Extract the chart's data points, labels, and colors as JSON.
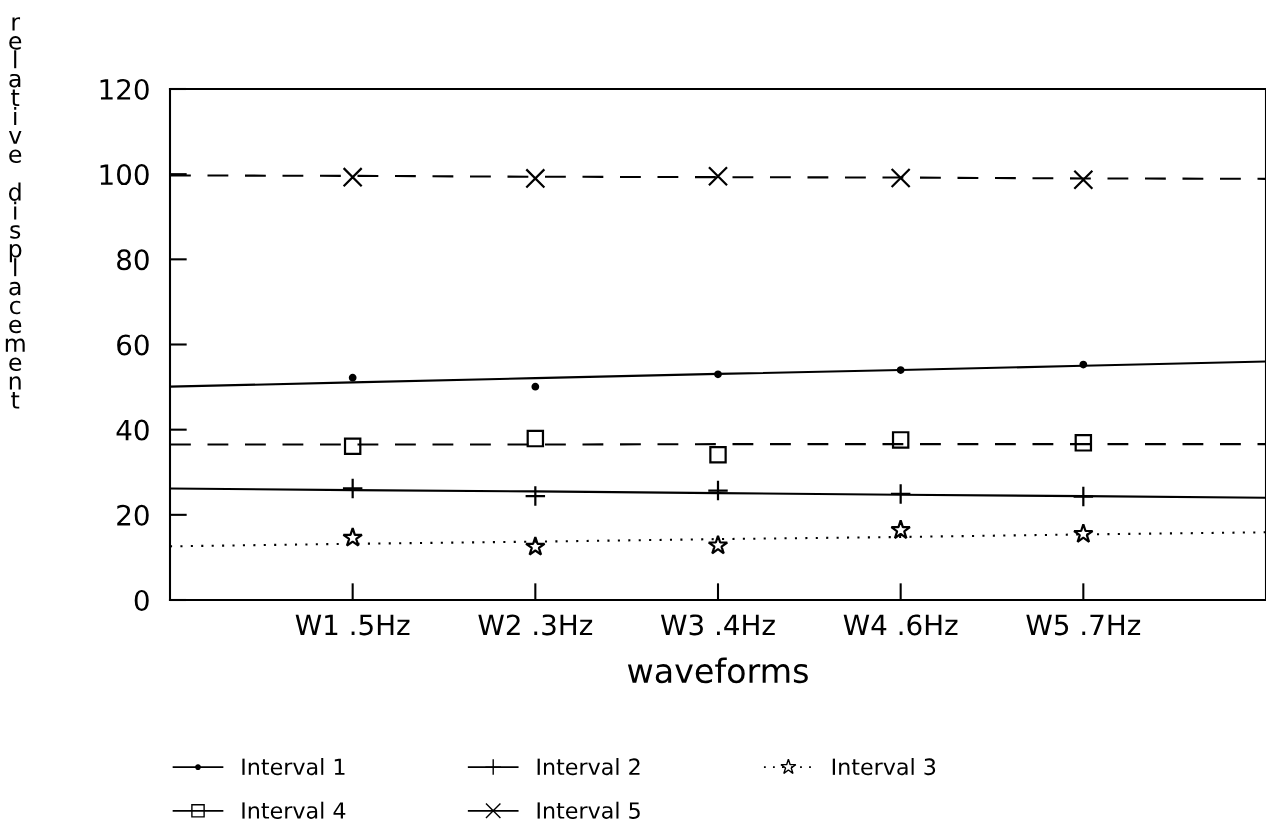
{
  "chart_data": {
    "type": "scatter",
    "xlabel": "waveforms",
    "ylabel": "relative displacement",
    "categories": [
      null,
      "W1 .5Hz",
      "W2 .3Hz",
      "W3 .4Hz",
      "W4 .6Hz",
      "W5 .7Hz",
      null
    ],
    "ylim": [
      0,
      120
    ],
    "yticks": [
      0,
      20,
      40,
      60,
      80,
      100,
      120
    ],
    "grid": false,
    "legend": "bottom",
    "series": [
      {
        "name": "Interval 1",
        "marker": "circle",
        "line_style": "solid",
        "color": "#000000",
        "values": [
          null,
          52.2,
          50.1,
          53.0,
          54.0,
          55.3,
          null
        ]
      },
      {
        "name": "Interval 2",
        "marker": "plus",
        "line_style": "solid",
        "color": "#000000",
        "values": [
          null,
          26.2,
          24.4,
          25.7,
          24.9,
          24.3,
          null
        ]
      },
      {
        "name": "Interval 3",
        "marker": "star",
        "line_style": "dotted",
        "color": "#000000",
        "values": [
          null,
          14.6,
          12.5,
          12.8,
          16.4,
          15.5,
          null
        ]
      },
      {
        "name": "Interval 4",
        "marker": "square",
        "line_style": "solid",
        "color": "#000000",
        "values": [
          null,
          36.1,
          37.9,
          34.1,
          37.6,
          36.9,
          null
        ]
      },
      {
        "name": "Interval 5",
        "marker": "cross",
        "line_style": "solid",
        "color": "#000000",
        "values": [
          null,
          99.3,
          99.0,
          99.5,
          99.1,
          98.7,
          null
        ]
      },
      {
        "type": "line",
        "line_style": "solid",
        "color": "#000000",
        "values": [
          50.1,
          51.1,
          52.1,
          53.1,
          54.0,
          55.0,
          56.0
        ]
      },
      {
        "type": "line",
        "line_style": "solid",
        "color": "#000000",
        "values": [
          26.2,
          25.8,
          25.5,
          25.1,
          24.7,
          24.4,
          24.0
        ]
      },
      {
        "type": "line",
        "line_style": "dotted",
        "color": "#000000",
        "values": [
          12.6,
          13.2,
          13.7,
          14.3,
          14.8,
          15.4,
          15.9
        ]
      },
      {
        "type": "line",
        "line_style": "dashed",
        "color": "#000000",
        "values": [
          36.5,
          36.5,
          36.5,
          36.6,
          36.6,
          36.6,
          36.6
        ]
      },
      {
        "type": "line",
        "line_style": "dashed",
        "color": "#000000",
        "values": [
          99.7,
          99.6,
          99.4,
          99.3,
          99.2,
          99.0,
          98.9
        ]
      }
    ]
  }
}
